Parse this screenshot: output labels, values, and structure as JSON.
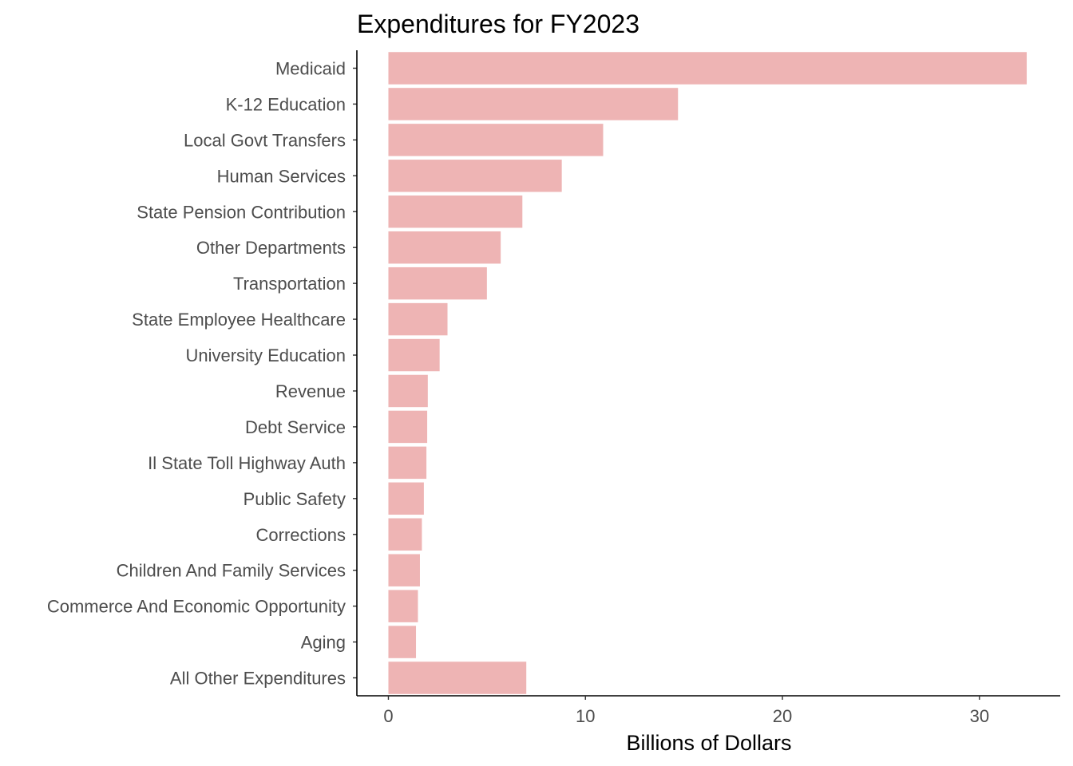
{
  "chart_data": {
    "type": "bar",
    "orientation": "horizontal",
    "title": "Expenditures for FY2023",
    "xlabel": "Billions of Dollars",
    "ylabel": "",
    "xlim": [
      -1.6,
      34.1
    ],
    "xticks": [
      0,
      10,
      20,
      30
    ],
    "grid": false,
    "bar_color": "#eeb4b4",
    "categories": [
      "Medicaid",
      "K-12 Education",
      "Local Govt Transfers",
      "Human Services",
      "State Pension Contribution",
      "Other Departments",
      "Transportation",
      "State Employee Healthcare",
      "University Education",
      "Revenue",
      "Debt Service",
      "Il State Toll Highway Auth",
      "Public Safety",
      "Corrections",
      "Children And Family Services",
      "Commerce And Economic Opportunity",
      "Aging",
      "All Other Expenditures"
    ],
    "values": [
      32.4,
      14.7,
      10.9,
      8.8,
      6.8,
      5.7,
      5.0,
      3.0,
      2.6,
      2.0,
      1.97,
      1.93,
      1.8,
      1.7,
      1.6,
      1.5,
      1.4,
      7.0
    ]
  }
}
